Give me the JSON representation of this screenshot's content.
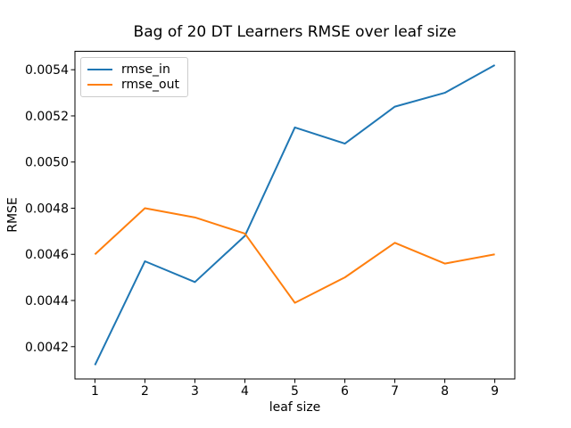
{
  "chart_data": {
    "type": "line",
    "title": "Bag of 20 DT Learners RMSE over leaf size",
    "xlabel": "leaf size",
    "ylabel": "RMSE",
    "x": [
      1,
      2,
      3,
      4,
      5,
      6,
      7,
      8,
      9
    ],
    "series": [
      {
        "name": "rmse_in",
        "color": "#1f77b4",
        "values": [
          0.00412,
          0.00457,
          0.00448,
          0.00468,
          0.00515,
          0.00508,
          0.00524,
          0.0053,
          0.00542
        ]
      },
      {
        "name": "rmse_out",
        "color": "#ff7f0e",
        "values": [
          0.0046,
          0.0048,
          0.00476,
          0.00469,
          0.00439,
          0.0045,
          0.00465,
          0.00456,
          0.0046
        ]
      }
    ],
    "xlim": [
      0.6,
      9.4
    ],
    "ylim": [
      0.00406,
      0.00548
    ],
    "xticks": [
      "1",
      "2",
      "3",
      "4",
      "5",
      "6",
      "7",
      "8",
      "9"
    ],
    "xtick_values": [
      1,
      2,
      3,
      4,
      5,
      6,
      7,
      8,
      9
    ],
    "yticks": [
      "0.0042",
      "0.0044",
      "0.0046",
      "0.0048",
      "0.0050",
      "0.0052",
      "0.0054"
    ],
    "ytick_values": [
      0.0042,
      0.0044,
      0.0046,
      0.0048,
      0.005,
      0.0052,
      0.0054
    ],
    "legend": {
      "position": "upper left",
      "entries": [
        "rmse_in",
        "rmse_out"
      ]
    },
    "grid": false,
    "colors": {
      "spine": "#000000",
      "text": "#000000",
      "legend_border": "#cccccc",
      "background": "#ffffff"
    }
  }
}
